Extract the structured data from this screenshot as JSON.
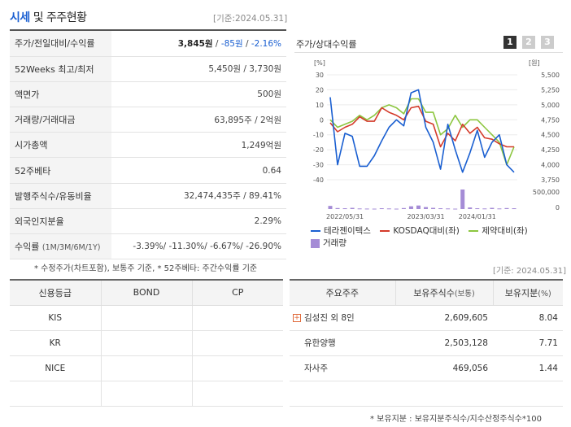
{
  "header": {
    "title_blue": "시세",
    "title_rest": " 및 주주현황",
    "date": "[기준:2024.05.31]"
  },
  "price_rows": [
    {
      "label": "주가/전일대비/수익률",
      "v1": "3,845원",
      "v2": " / ",
      "v3": "-85원",
      "v4": " / ",
      "v5": "-2.16%"
    },
    {
      "label": "52Weeks 최고/최저",
      "value": "5,450원 / 3,730원"
    },
    {
      "label": "액면가",
      "value": "500원"
    },
    {
      "label": "거래량/거래대금",
      "value": "63,895주 / 2억원"
    },
    {
      "label": "시가총액",
      "value": "1,249억원"
    },
    {
      "label": "52주베타",
      "value": "0.64"
    },
    {
      "label": "발행주식수/유동비율",
      "value": "32,474,435주 / 89.41%"
    },
    {
      "label": "외국인지분율",
      "value": "2.29%"
    },
    {
      "label": "수익률",
      "label_sm": "(1M/3M/6M/1Y)",
      "value": "-3.39%/ -11.30%/ -6.67%/ -26.90%"
    }
  ],
  "price_footnote": "* 수정주가(차트포함), 보통주 기준, * 52주베타: 주간수익률 기준",
  "chart_panel": {
    "title": "주가/상대수익률",
    "tabs": [
      "1",
      "2",
      "3"
    ],
    "date_footnote": "[기준: 2024.05.31]",
    "legend": {
      "series1": "테라젠이텍스",
      "series2": "KOSDAQ대비(좌)",
      "series3": "제약대비(좌)",
      "volume": "거래량"
    },
    "colors": {
      "stock": "#1a5fd1",
      "kosdaq": "#d43a2a",
      "pharma": "#8cc63f",
      "volume": "#a58cd6"
    }
  },
  "chart_data": {
    "type": "line",
    "x_tick_labels": [
      "2022/05/31",
      "2023/03/31",
      "2024/01/31"
    ],
    "left_axis": {
      "unit": "[%]",
      "ticks": [
        30,
        20,
        10,
        0,
        -10,
        -20,
        -30,
        -40
      ],
      "range": [
        -40,
        30
      ]
    },
    "right_axis": {
      "unit": "[원]",
      "ticks": [
        "5,500",
        "5,250",
        "5,000",
        "4,750",
        "4,500",
        "4,250",
        "4,000",
        "3,750"
      ],
      "range": [
        3750,
        5500
      ]
    },
    "volume_axis": {
      "ticks": [
        "500,000",
        "0"
      ],
      "range": [
        0,
        500000
      ]
    },
    "series": [
      {
        "name": "테라젠이텍스",
        "axis": "left",
        "values": [
          15,
          -30,
          -9,
          -11,
          -31,
          -31,
          -24,
          -14,
          -5,
          0,
          -4,
          18,
          20,
          -5,
          -15,
          -33,
          -3,
          -20,
          -35,
          -22,
          -7,
          -25,
          -15,
          -10,
          -30,
          -35
        ]
      },
      {
        "name": "KOSDAQ대비(좌)",
        "axis": "left",
        "values": [
          -2,
          -8,
          -5,
          -3,
          2,
          -1,
          -1,
          8,
          5,
          3,
          0,
          8,
          9,
          -1,
          -3,
          -18,
          -9,
          -14,
          -3,
          -9,
          -5,
          -12,
          -13,
          -16,
          -18,
          -18
        ]
      },
      {
        "name": "제약대비(좌)",
        "axis": "left",
        "values": [
          0,
          -5,
          -3,
          -1,
          3,
          0,
          3,
          8,
          10,
          8,
          4,
          14,
          14,
          5,
          5,
          -10,
          -6,
          3,
          -5,
          0,
          0,
          -5,
          -10,
          -15,
          -30,
          -18
        ]
      }
    ],
    "volume": [
      80000,
      25000,
      20000,
      30000,
      15000,
      12000,
      10000,
      20000,
      15000,
      10000,
      25000,
      70000,
      90000,
      50000,
      30000,
      20000,
      15000,
      10000,
      510000,
      40000,
      20000,
      15000,
      30000,
      15000,
      25000,
      20000
    ]
  },
  "credit": {
    "headers": [
      "신용등급",
      "BOND",
      "CP"
    ],
    "rows": [
      [
        "KIS",
        "",
        ""
      ],
      [
        "KR",
        "",
        ""
      ],
      [
        "NICE",
        "",
        ""
      ],
      [
        "",
        "",
        ""
      ]
    ]
  },
  "holders": {
    "headers": {
      "name": "주요주주",
      "shares": "보유주식수",
      "shares_sm": "(보통)",
      "ratio": "보유지분",
      "ratio_sm": "(%)"
    },
    "rows": [
      {
        "name": "김성진 외 8인",
        "shares": "2,609,605",
        "ratio": "8.04",
        "expand": "+"
      },
      {
        "name": "유한양행",
        "shares": "2,503,128",
        "ratio": "7.71"
      },
      {
        "name": "자사주",
        "shares": "469,056",
        "ratio": "1.44"
      },
      {
        "name": "",
        "shares": "",
        "ratio": ""
      }
    ],
    "footnote": "* 보유지분 : 보유지분주식수/지수산정주식수*100"
  }
}
